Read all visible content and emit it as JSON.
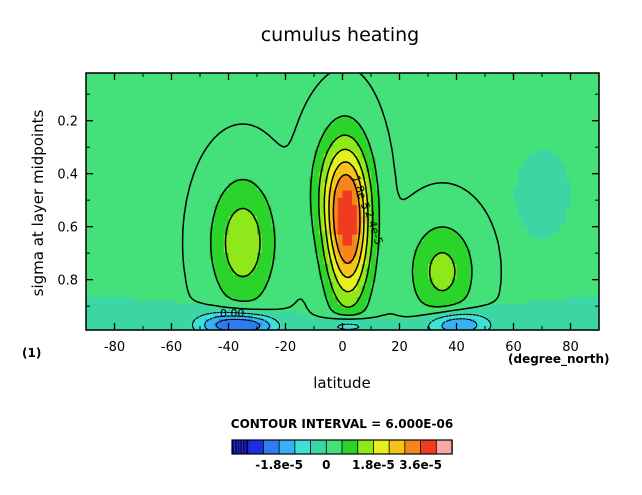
{
  "chart_data": {
    "type": "heatmap",
    "title": "cumulus heating",
    "xlabel": "latitude",
    "ylabel": "sigma at layer midpoints",
    "x_unit_label": "(degree_north)",
    "corner_label": "(1)",
    "xlim": [
      -90,
      90
    ],
    "ylim": [
      0.02,
      0.99
    ],
    "y_inverted": true,
    "x_ticks": [
      -80,
      -60,
      -40,
      -20,
      0,
      20,
      40,
      60,
      80
    ],
    "x_tick_labels": [
      "-80",
      "-60",
      "-40",
      "-20",
      "0",
      "20",
      "40",
      "60",
      "80"
    ],
    "y_ticks": [
      0.2,
      0.4,
      0.6,
      0.8
    ],
    "y_tick_labels": [
      "0.2",
      "0.4",
      "0.6",
      "0.8"
    ],
    "contour_interval_text": "CONTOUR INTERVAL = 6.000E-06",
    "contour_labels": [
      "1.8e-5",
      "2.4e-5",
      "0.00"
    ],
    "colorbar": {
      "levels": [
        -3.6e-05,
        -3e-05,
        -2.4e-05,
        -1.8e-05,
        -1.2e-05,
        -6e-06,
        0,
        6e-06,
        1.2e-05,
        1.8e-05,
        2.4e-05,
        3e-05,
        3.6e-05,
        4.2e-05
      ],
      "colors": [
        "#0a0a7a",
        "#1a2de0",
        "#2f7cf0",
        "#36b2f2",
        "#3fe0d8",
        "#3cd6a4",
        "#44e07a",
        "#2bd42b",
        "#8ee81a",
        "#e6f01e",
        "#f6c21a",
        "#f5861c",
        "#ef3b1e",
        "#f8a7a7"
      ],
      "tick_values": [
        -1.8e-05,
        0,
        1.8e-05,
        3.6e-05
      ],
      "tick_labels": [
        "-1.8e-5",
        "0",
        "1.8e-5",
        "3.6e-5"
      ]
    },
    "features": [
      {
        "type": "peak",
        "x": 2,
        "y": 0.62,
        "value": 3.3e-05
      },
      {
        "type": "peak",
        "x": -35,
        "y": 0.66,
        "value": 1.6e-05
      },
      {
        "type": "peak",
        "x": 35,
        "y": 0.77,
        "value": 1.4e-05
      },
      {
        "type": "trough",
        "x": -40,
        "y": 0.97,
        "value": -2.2e-05
      },
      {
        "type": "trough",
        "x": 40,
        "y": 0.97,
        "value": -2e-05
      },
      {
        "type": "trough",
        "x": 2,
        "y": 0.975,
        "value": -1.4e-05
      },
      {
        "type": "trough",
        "x": 68,
        "y": 0.5,
        "value": -6e-06
      }
    ]
  }
}
